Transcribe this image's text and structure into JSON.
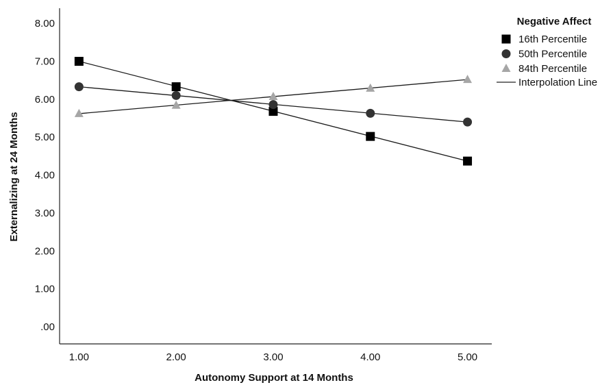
{
  "chart_data": {
    "type": "line",
    "xlabel": "Autonomy Support at 14 Months",
    "ylabel": "Externalizing at 24 Months",
    "x": [
      1,
      2,
      3,
      4,
      5
    ],
    "x_tick_labels": [
      "1.00",
      "2.00",
      "3.00",
      "4.00",
      "5.00"
    ],
    "y_tick_values": [
      0,
      1,
      2,
      3,
      4,
      5,
      6,
      7,
      8
    ],
    "y_tick_labels": [
      ".00",
      "1.00",
      "2.00",
      "3.00",
      "4.00",
      "5.00",
      "6.00",
      "7.00",
      "8.00"
    ],
    "xlim": [
      0.8,
      5.25
    ],
    "ylim": [
      -0.45,
      8.4
    ],
    "grid": false,
    "legend": {
      "title": "Negative Affect",
      "position": "top-right",
      "interpolation_label": "Interpolation Line"
    },
    "series": [
      {
        "name": "16th Percentile",
        "marker": "square",
        "color": "#000000",
        "values": [
          7.0,
          6.33,
          5.68,
          5.02,
          4.37
        ],
        "fit": [
          7.0,
          4.37
        ]
      },
      {
        "name": "50th Percentile",
        "marker": "circle",
        "color": "#333333",
        "values": [
          6.33,
          6.1,
          5.86,
          5.63,
          5.4
        ],
        "fit": [
          6.33,
          5.4
        ]
      },
      {
        "name": "84th Percentile",
        "marker": "triangle",
        "color": "#a6a6a6",
        "values": [
          5.62,
          5.84,
          6.07,
          6.29,
          6.52
        ],
        "fit": [
          5.62,
          6.52
        ]
      }
    ]
  }
}
